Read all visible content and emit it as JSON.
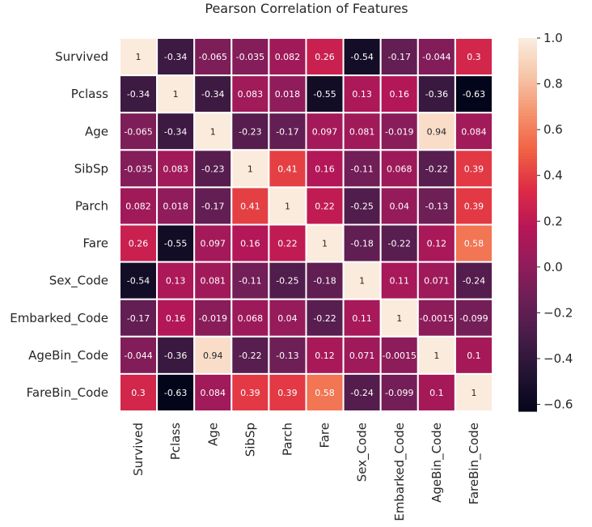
{
  "chart_data": {
    "type": "heatmap",
    "title": "Pearson Correlation of Features",
    "labels": [
      "Survived",
      "Pclass",
      "Age",
      "SibSp",
      "Parch",
      "Fare",
      "Sex_Code",
      "Embarked_Code",
      "AgeBin_Code",
      "FareBin_Code"
    ],
    "values": [
      [
        "1",
        "-0.34",
        "-0.065",
        "-0.035",
        "0.082",
        "0.26",
        "-0.54",
        "-0.17",
        "-0.044",
        "0.3"
      ],
      [
        "-0.34",
        "1",
        "-0.34",
        "0.083",
        "0.018",
        "-0.55",
        "0.13",
        "0.16",
        "-0.36",
        "-0.63"
      ],
      [
        "-0.065",
        "-0.34",
        "1",
        "-0.23",
        "-0.17",
        "0.097",
        "0.081",
        "-0.019",
        "0.94",
        "0.084"
      ],
      [
        "-0.035",
        "0.083",
        "-0.23",
        "1",
        "0.41",
        "0.16",
        "-0.11",
        "0.068",
        "-0.22",
        "0.39"
      ],
      [
        "0.082",
        "0.018",
        "-0.17",
        "0.41",
        "1",
        "0.22",
        "-0.25",
        "0.04",
        "-0.13",
        "0.39"
      ],
      [
        "0.26",
        "-0.55",
        "0.097",
        "0.16",
        "0.22",
        "1",
        "-0.18",
        "-0.22",
        "0.12",
        "0.58"
      ],
      [
        "-0.54",
        "0.13",
        "0.081",
        "-0.11",
        "-0.25",
        "-0.18",
        "1",
        "0.11",
        "0.071",
        "-0.24"
      ],
      [
        "-0.17",
        "0.16",
        "-0.019",
        "0.068",
        "0.04",
        "-0.22",
        "0.11",
        "1",
        "-0.0015",
        "-0.099"
      ],
      [
        "-0.044",
        "-0.36",
        "0.94",
        "-0.22",
        "-0.13",
        "0.12",
        "0.071",
        "-0.0015",
        "1",
        "0.1"
      ],
      [
        "0.3",
        "-0.63",
        "0.084",
        "0.39",
        "0.39",
        "0.58",
        "-0.24",
        "-0.099",
        "0.1",
        "1"
      ]
    ],
    "colormap": "rocket",
    "vmin": -0.63,
    "vmax": 1.0,
    "colorbar_ticks": [
      "1.0",
      "0.8",
      "0.6",
      "0.4",
      "0.2",
      "0.0",
      "−0.2",
      "−0.4",
      "−0.6"
    ],
    "colorbar_tick_values": [
      1.0,
      0.8,
      0.6,
      0.4,
      0.2,
      0.0,
      -0.2,
      -0.4,
      -0.6
    ],
    "grid_line_color": "#ffffff"
  }
}
